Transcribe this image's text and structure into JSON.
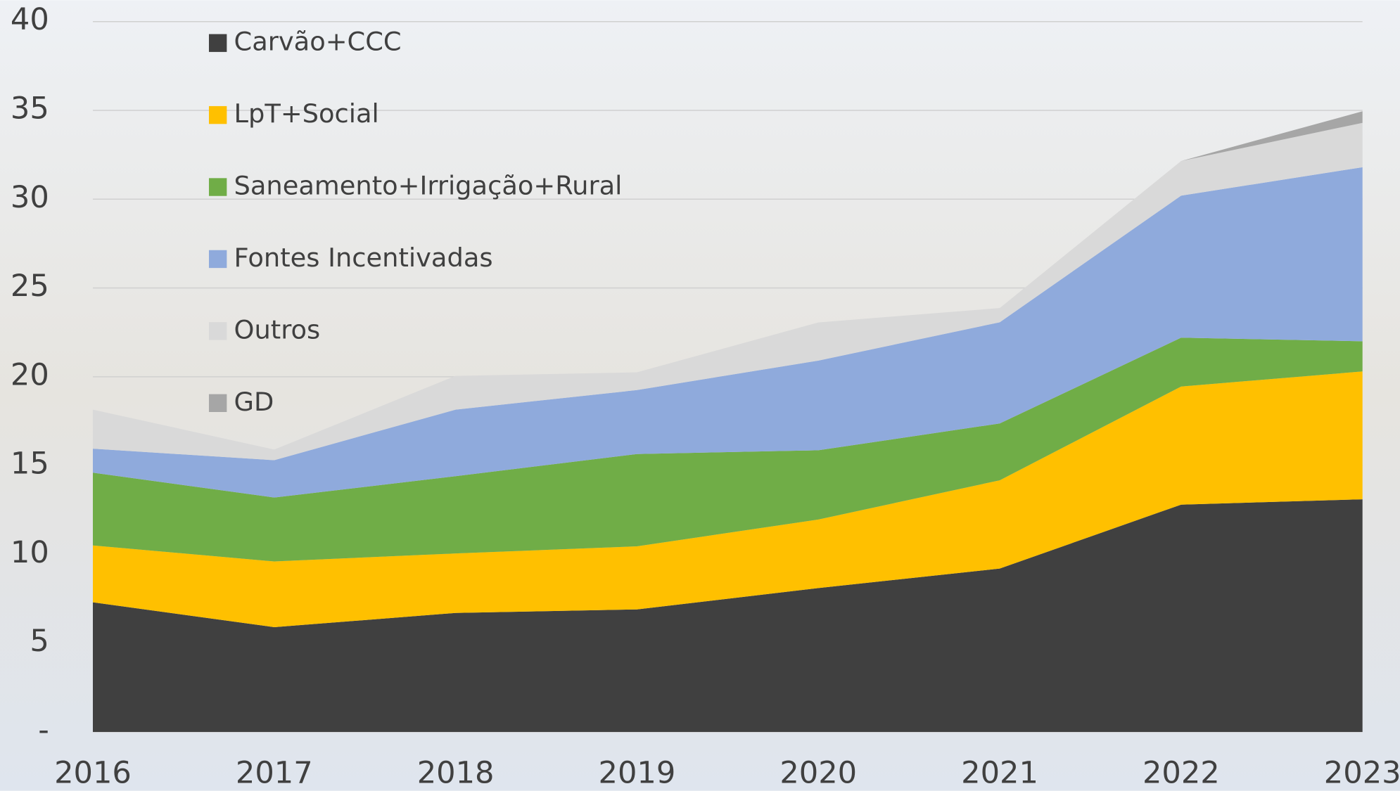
{
  "chart_data": {
    "type": "stacked_area",
    "categories": [
      "2016",
      "2017",
      "2018",
      "2019",
      "2020",
      "2021",
      "2022",
      "2023"
    ],
    "series": [
      {
        "name": "Carvão+CCC",
        "color": "#404040",
        "values": [
          7.3,
          5.9,
          6.7,
          6.9,
          8.1,
          9.2,
          12.8,
          13.1
        ]
      },
      {
        "name": "LpT+Social",
        "color": "#ffc000",
        "values": [
          3.2,
          3.7,
          3.35,
          3.55,
          3.86,
          4.97,
          6.65,
          7.2
        ]
      },
      {
        "name": "Saneamento+Irrigação+Rural",
        "color": "#70ad47",
        "values": [
          4.1,
          3.6,
          4.35,
          5.2,
          3.9,
          3.2,
          2.75,
          1.7
        ]
      },
      {
        "name": "Fontes Incentivadas",
        "color": "#8faadc",
        "values": [
          1.35,
          2.1,
          3.75,
          3.6,
          5.05,
          5.7,
          8.0,
          9.8
        ]
      },
      {
        "name": "Outros",
        "color": "#d9d9d9",
        "values": [
          2.2,
          0.6,
          1.9,
          1.0,
          2.15,
          0.8,
          1.95,
          2.5
        ]
      },
      {
        "name": "GD",
        "color": "#a6a6a6",
        "values": [
          0,
          0,
          0,
          0,
          0,
          0,
          0,
          0.65
        ]
      }
    ],
    "ylim": [
      0,
      40
    ],
    "yticks": [
      {
        "value": 0,
        "label": "-"
      },
      5,
      10,
      15,
      20,
      25,
      30,
      35,
      40
    ],
    "grid": true,
    "legend": "top-left"
  }
}
